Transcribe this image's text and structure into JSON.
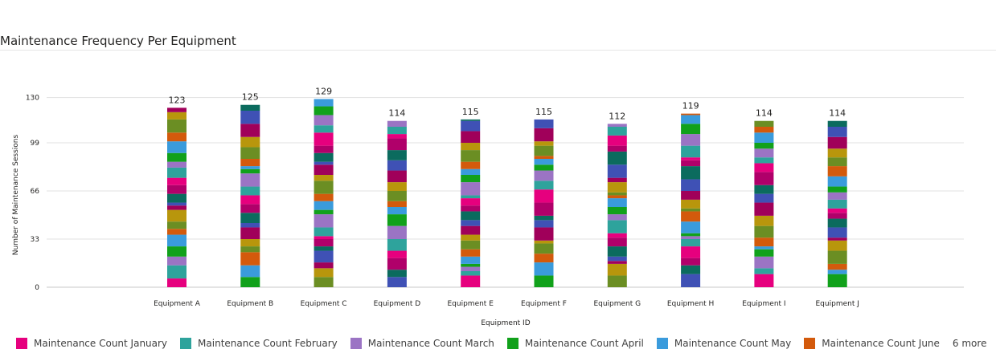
{
  "title": "Maintenance Frequency Per Equipment",
  "legend": {
    "items": [
      {
        "label": "Maintenance Count January",
        "color": "#E6007E"
      },
      {
        "label": "Maintenance Count February",
        "color": "#2EA39C"
      },
      {
        "label": "Maintenance Count March",
        "color": "#9B74C4"
      },
      {
        "label": "Maintenance Count April",
        "color": "#11A11B"
      },
      {
        "label": "Maintenance Count May",
        "color": "#3A9BDC"
      },
      {
        "label": "Maintenance Count June",
        "color": "#D35A0C"
      }
    ],
    "more_label": "6 more"
  },
  "chart_data": {
    "type": "bar",
    "stacked": true,
    "title": "Maintenance Frequency Per Equipment",
    "xlabel": "Equipment ID",
    "ylabel": "Number of Maintenance Sessions",
    "ylim": [
      0,
      132
    ],
    "yticks": [
      0,
      33,
      66,
      99,
      130
    ],
    "grid": true,
    "legend_position": "bottom",
    "categories": [
      "Equipment A",
      "Equipment B",
      "Equipment C",
      "Equipment D",
      "Equipment E",
      "Equipment F",
      "Equipment G",
      "Equipment H",
      "Equipment I",
      "Equipment J"
    ],
    "totals": [
      123,
      125,
      129,
      114,
      115,
      115,
      112,
      119,
      114,
      114
    ],
    "palette": [
      "#E6007E",
      "#2EA39C",
      "#9B74C4",
      "#11A11B",
      "#3A9BDC",
      "#D35A0C",
      "#6B8E23",
      "#B8960C",
      "#A0005A",
      "#3F51B5",
      "#0B6B5E",
      "#B0006A"
    ]
  }
}
